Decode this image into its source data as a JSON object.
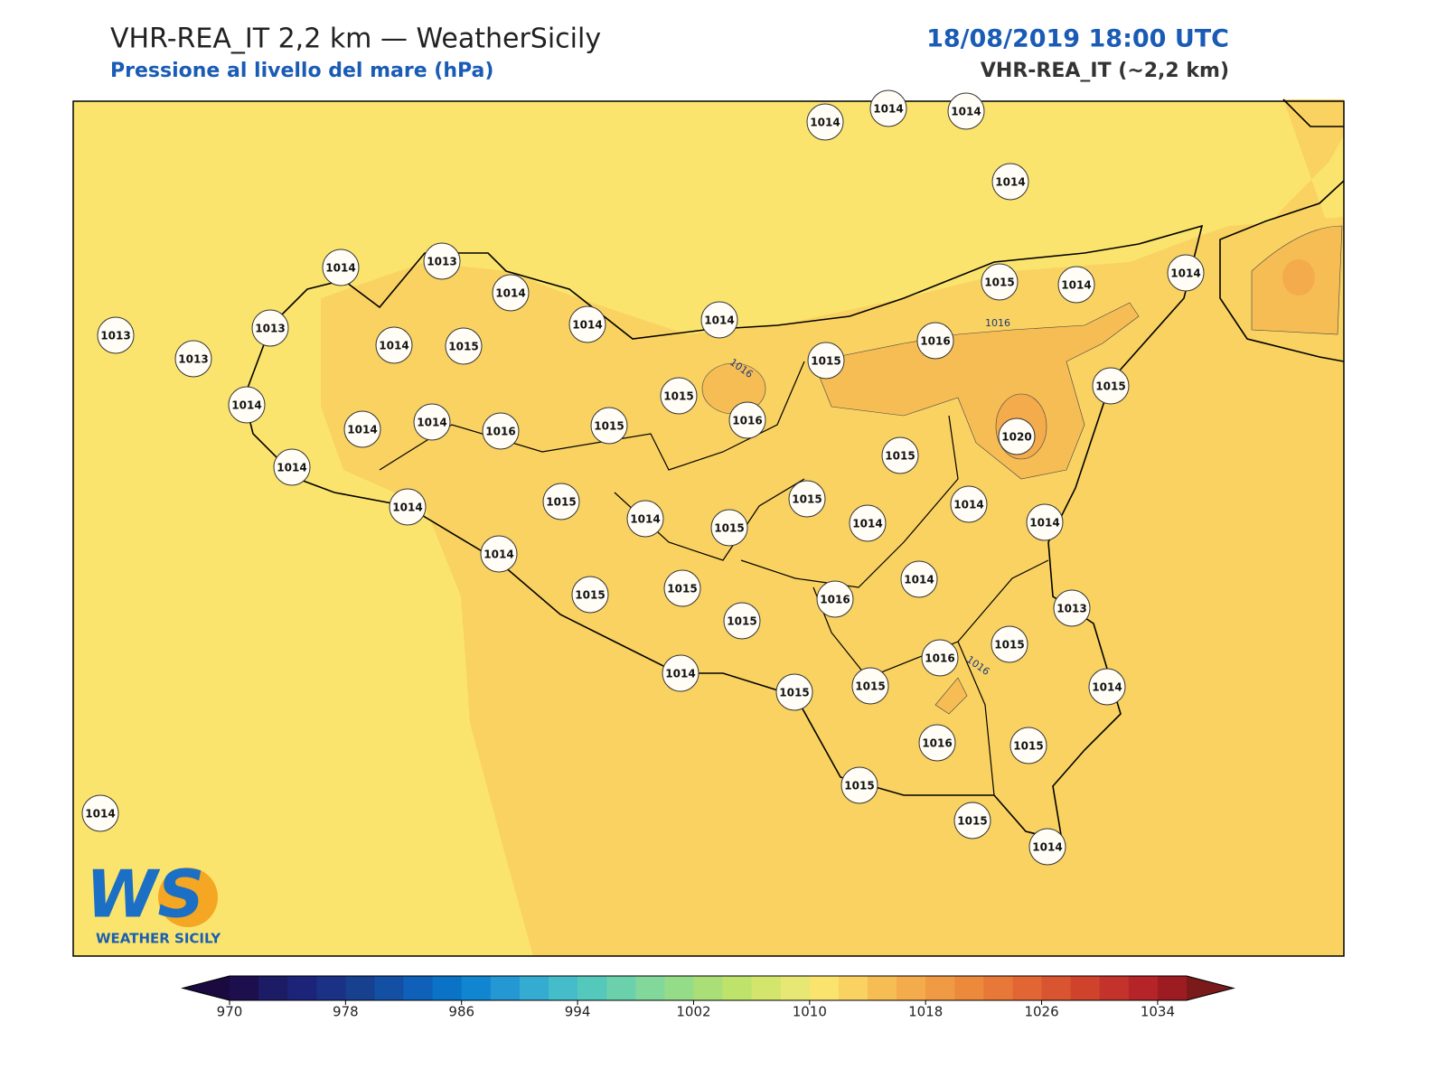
{
  "header": {
    "title": "VHR-REA_IT 2,2 km — WeatherSicily",
    "subtitle": "Pressione al livello del mare (hPa)",
    "time": "18/08/2019 18:00 UTC",
    "model": "VHR-REA_IT (~2,2 km)"
  },
  "map": {
    "stations": [
      1014,
      1014,
      1014,
      1014,
      1014,
      1013,
      1014,
      1014,
      1014,
      1015,
      1014,
      1014,
      1013,
      1013,
      1013,
      1014,
      1015,
      1015,
      1016,
      1015,
      1014,
      1015,
      1014,
      1014,
      1016,
      1015,
      1016,
      1020,
      1015,
      1014,
      1015,
      1015,
      1014,
      1014,
      1014,
      1015,
      1014,
      1014,
      1014,
      1014,
      1015,
      1015,
      1016,
      1013,
      1015,
      1016,
      1015,
      1014,
      1014,
      1015,
      1015,
      1016,
      1015,
      1015,
      1015,
      1014,
      1014
    ],
    "contour_labels": [
      "1016",
      "1016",
      "1016"
    ],
    "logo": {
      "mark": "WS",
      "text": "WEATHER SICILY"
    }
  },
  "colorbar": {
    "range": [
      970,
      1036
    ],
    "ticks": [
      970,
      978,
      986,
      994,
      1002,
      1010,
      1018,
      1026,
      1034
    ],
    "colors": [
      "#1d0f4e",
      "#1c1b66",
      "#1b2478",
      "#1a3185",
      "#17408f",
      "#1350a4",
      "#0e60b8",
      "#0a73c6",
      "#1186d0",
      "#2398d2",
      "#34abd1",
      "#45bcc9",
      "#55c8bc",
      "#6bd0ac",
      "#82d79b",
      "#95dc89",
      "#aadf78",
      "#bee36b",
      "#d3e66b",
      "#e6e873",
      "#fbe46e",
      "#f9d262",
      "#f6bd55",
      "#f3ab4b",
      "#f09a43",
      "#ec8a3c",
      "#e87838",
      "#e26634",
      "#d95430",
      "#cf432d",
      "#c3332b",
      "#b52428",
      "#9c1c22"
    ],
    "under": "#1a0a3f",
    "over": "#7a1a1a"
  }
}
